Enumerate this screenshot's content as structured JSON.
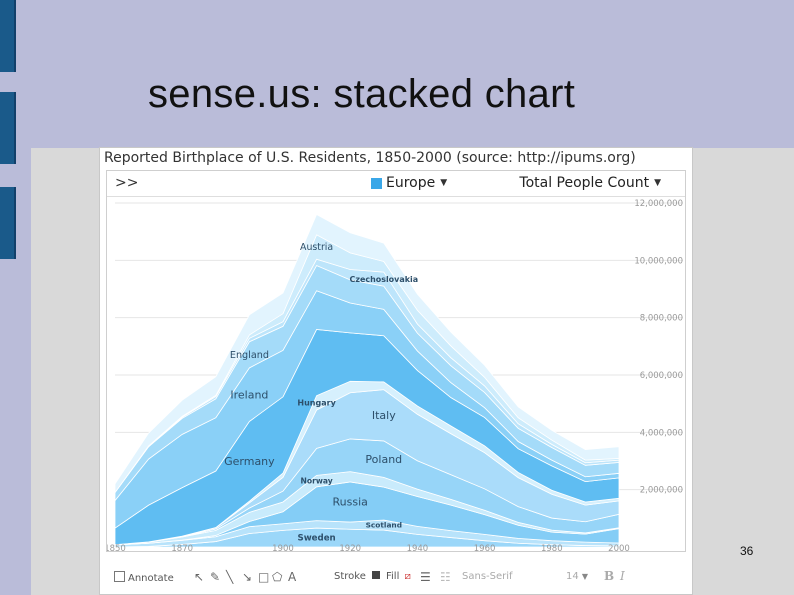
{
  "slide": {
    "title": "sense.us: stacked chart",
    "page_number": "36"
  },
  "app": {
    "header": "Reported Birthplace of U.S. Residents, 1850-2000 (source: http://ipums.org)",
    "expand_label": ">>",
    "region_label": "Europe",
    "measure_label": "Total People Count",
    "bottom_toolbar": {
      "annotate": "Annotate",
      "stroke": "Stroke",
      "fill": "Fill",
      "font": "Sans-Serif",
      "font_size": "14",
      "bold": "B",
      "italic": "I"
    }
  },
  "colors": {
    "slide_bg": "#babcd9",
    "accent_bar": "#1a5a8a",
    "region_swatch": "#3aa7e8"
  },
  "chart_data": {
    "type": "area",
    "stacked": true,
    "x": [
      1850,
      1860,
      1870,
      1880,
      1890,
      1900,
      1910,
      1920,
      1930,
      1940,
      1950,
      1960,
      1970,
      1980,
      1990,
      2000
    ],
    "xlim": [
      1850,
      2000
    ],
    "ylim": [
      0,
      12000000
    ],
    "xticks": [
      "1850",
      "1870",
      "1900",
      "1920",
      "1940",
      "1960",
      "1980",
      "2000"
    ],
    "yticks": [
      "2,000,000",
      "4,000,000",
      "6,000,000",
      "8,000,000",
      "10,000,000",
      "12,000,000"
    ],
    "grid": true,
    "series": [
      {
        "name": "Sweden",
        "values": [
          0,
          20000,
          90000,
          190000,
          470000,
          580000,
          660000,
          620000,
          590000,
          440000,
          330000,
          220000,
          130000,
          80000,
          50000,
          40000
        ]
      },
      {
        "name": "Scotland",
        "values": [
          70000,
          110000,
          140000,
          170000,
          240000,
          230000,
          260000,
          250000,
          350000,
          280000,
          240000,
          220000,
          170000,
          140000,
          120000,
          100000
        ]
      },
      {
        "name": "Russia",
        "values": [
          0,
          0,
          10000,
          40000,
          180000,
          420000,
          1180000,
          1400000,
          1150000,
          1040000,
          890000,
          690000,
          460000,
          300000,
          280000,
          500000
        ]
      },
      {
        "name": "Norway",
        "values": [
          10000,
          40000,
          110000,
          180000,
          320000,
          340000,
          400000,
          360000,
          340000,
          260000,
          200000,
          150000,
          100000,
          70000,
          40000,
          30000
        ]
      },
      {
        "name": "Poland",
        "values": [
          0,
          0,
          10000,
          50000,
          150000,
          380000,
          940000,
          1140000,
          1270000,
          990000,
          860000,
          750000,
          550000,
          420000,
          390000,
          470000
        ]
      },
      {
        "name": "Italy",
        "values": [
          0,
          10000,
          20000,
          40000,
          180000,
          480000,
          1340000,
          1610000,
          1790000,
          1620000,
          1430000,
          1260000,
          1010000,
          830000,
          580000,
          470000
        ]
      },
      {
        "name": "Hungary",
        "values": [
          0,
          0,
          0,
          10000,
          60000,
          150000,
          500000,
          400000,
          270000,
          290000,
          270000,
          240000,
          180000,
          140000,
          110000,
          90000
        ]
      },
      {
        "name": "Germany",
        "values": [
          580000,
          1280000,
          1690000,
          1970000,
          2780000,
          2660000,
          2310000,
          1690000,
          1610000,
          1240000,
          990000,
          990000,
          830000,
          850000,
          710000,
          710000
        ]
      },
      {
        "name": "Ireland",
        "values": [
          960000,
          1610000,
          1860000,
          1860000,
          1870000,
          1620000,
          1350000,
          1040000,
          920000,
          680000,
          520000,
          340000,
          250000,
          200000,
          170000,
          160000
        ]
      },
      {
        "name": "England",
        "values": [
          280000,
          430000,
          560000,
          660000,
          910000,
          840000,
          880000,
          810000,
          810000,
          620000,
          590000,
          530000,
          460000,
          440000,
          400000,
          380000
        ]
      },
      {
        "name": "Czechoslovakia",
        "values": [
          0,
          0,
          40000,
          80000,
          120000,
          160000,
          220000,
          360000,
          490000,
          320000,
          280000,
          230000,
          160000,
          110000,
          90000,
          80000
        ]
      },
      {
        "name": "Austria",
        "values": [
          0,
          25000,
          30000,
          40000,
          120000,
          280000,
          850000,
          580000,
          370000,
          480000,
          410000,
          300000,
          210000,
          150000,
          90000,
          60000
        ]
      },
      {
        "name": "",
        "values": [
          300000,
          450000,
          560000,
          650000,
          700000,
          720000,
          710000,
          700000,
          640000,
          560000,
          480000,
          420000,
          380000,
          340000,
          370000,
          410000
        ]
      }
    ]
  }
}
